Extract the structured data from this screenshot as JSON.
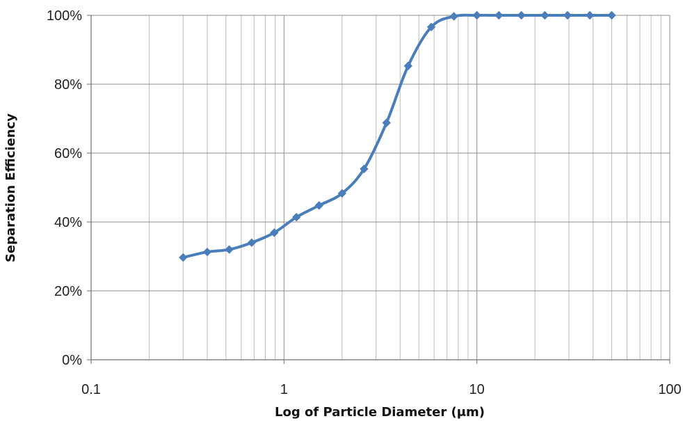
{
  "chart_data": {
    "type": "line",
    "title": "",
    "xlabel": "Log of Particle Diameter (μm)",
    "ylabel": "Separation Efficiency",
    "x_scale": "log",
    "xlim": [
      0.1,
      100
    ],
    "ylim": [
      0,
      1
    ],
    "x_ticks": [
      0.1,
      1,
      10,
      100
    ],
    "x_tick_labels": [
      "0.1",
      "1",
      "10",
      "100"
    ],
    "y_ticks": [
      0,
      0.2,
      0.4,
      0.6,
      0.8,
      1.0
    ],
    "y_tick_labels": [
      "0%",
      "20%",
      "40%",
      "60%",
      "80%",
      "100%"
    ],
    "grid": true,
    "legend": "none",
    "series": [
      {
        "color": "#4a7ebb",
        "marker": "diamond",
        "smooth": true,
        "x": [
          0.3,
          0.4,
          0.52,
          0.68,
          0.89,
          1.16,
          1.52,
          2.0,
          2.6,
          3.4,
          4.4,
          5.8,
          7.6,
          10,
          13,
          17,
          22.5,
          29.5,
          38.5,
          50
        ],
        "y": [
          0.297,
          0.313,
          0.32,
          0.34,
          0.369,
          0.414,
          0.448,
          0.483,
          0.554,
          0.688,
          0.853,
          0.966,
          0.997,
          1.0,
          1.0,
          1.0,
          1.0,
          1.0,
          1.0,
          1.0
        ]
      }
    ]
  }
}
